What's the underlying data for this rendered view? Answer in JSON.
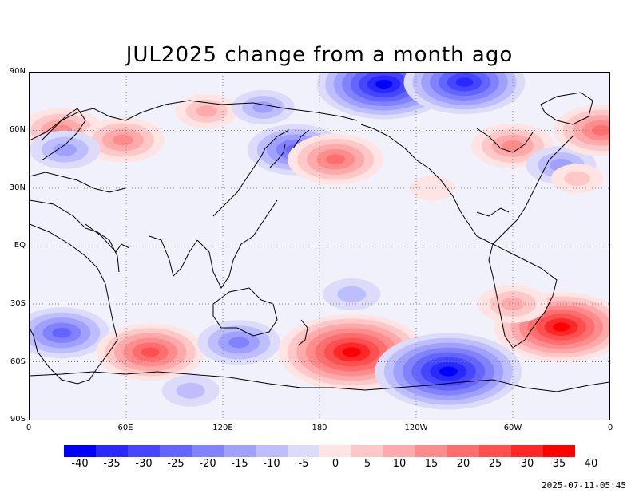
{
  "title": "JUL2025 change from a month ago",
  "timestamp": "2025-07-11-05:45",
  "lat_labels": [
    "90N",
    "60N",
    "30N",
    "EQ",
    "30S",
    "60S",
    "90S"
  ],
  "lon_labels": [
    "0",
    "60E",
    "120E",
    "180",
    "120W",
    "60W",
    "0"
  ],
  "colorbar": {
    "labels": [
      "-40",
      "-35",
      "-30",
      "-25",
      "-20",
      "-15",
      "-10",
      "-5",
      "0",
      "5",
      "10",
      "15",
      "20",
      "25",
      "30",
      "35",
      "40"
    ],
    "colors": [
      "#0000ff",
      "#2828ff",
      "#4646ff",
      "#6464ff",
      "#8282ff",
      "#a0a0ff",
      "#bebeff",
      "#dcdcfa",
      "#f1f1fb",
      "#ffe4e4",
      "#ffc8c8",
      "#ffaaaa",
      "#ff8c8c",
      "#ff6e6e",
      "#ff5050",
      "#ff2828",
      "#ff0000"
    ]
  },
  "map": {
    "lat_range": [
      -90,
      90
    ],
    "lon_range": [
      0,
      360
    ],
    "grid": true,
    "anomalies": [
      {
        "lon": 20,
        "lat": 60,
        "value": 20
      },
      {
        "lon": 58,
        "lat": 55,
        "value": 20
      },
      {
        "lon": 22,
        "lat": 50,
        "value": -15
      },
      {
        "lon": 110,
        "lat": 70,
        "value": 12
      },
      {
        "lon": 145,
        "lat": 72,
        "value": -12
      },
      {
        "lon": 165,
        "lat": 50,
        "value": -25
      },
      {
        "lon": 190,
        "lat": 45,
        "value": 25
      },
      {
        "lon": 220,
        "lat": 84,
        "value": -40
      },
      {
        "lon": 270,
        "lat": 85,
        "value": -35
      },
      {
        "lon": 300,
        "lat": 52,
        "value": 20
      },
      {
        "lon": 330,
        "lat": 42,
        "value": -15
      },
      {
        "lon": 355,
        "lat": 60,
        "value": 25
      },
      {
        "lon": 340,
        "lat": 35,
        "value": 8
      },
      {
        "lon": 20,
        "lat": -45,
        "value": -25
      },
      {
        "lon": 75,
        "lat": -55,
        "value": 30
      },
      {
        "lon": 130,
        "lat": -50,
        "value": -20
      },
      {
        "lon": 200,
        "lat": -55,
        "value": 45
      },
      {
        "lon": 260,
        "lat": -65,
        "value": -45
      },
      {
        "lon": 330,
        "lat": -42,
        "value": 40
      },
      {
        "lon": 300,
        "lat": -30,
        "value": 15
      },
      {
        "lon": 200,
        "lat": -25,
        "value": -10
      },
      {
        "lon": 250,
        "lat": 30,
        "value": 5
      },
      {
        "lon": 100,
        "lat": -75,
        "value": -10
      }
    ]
  }
}
